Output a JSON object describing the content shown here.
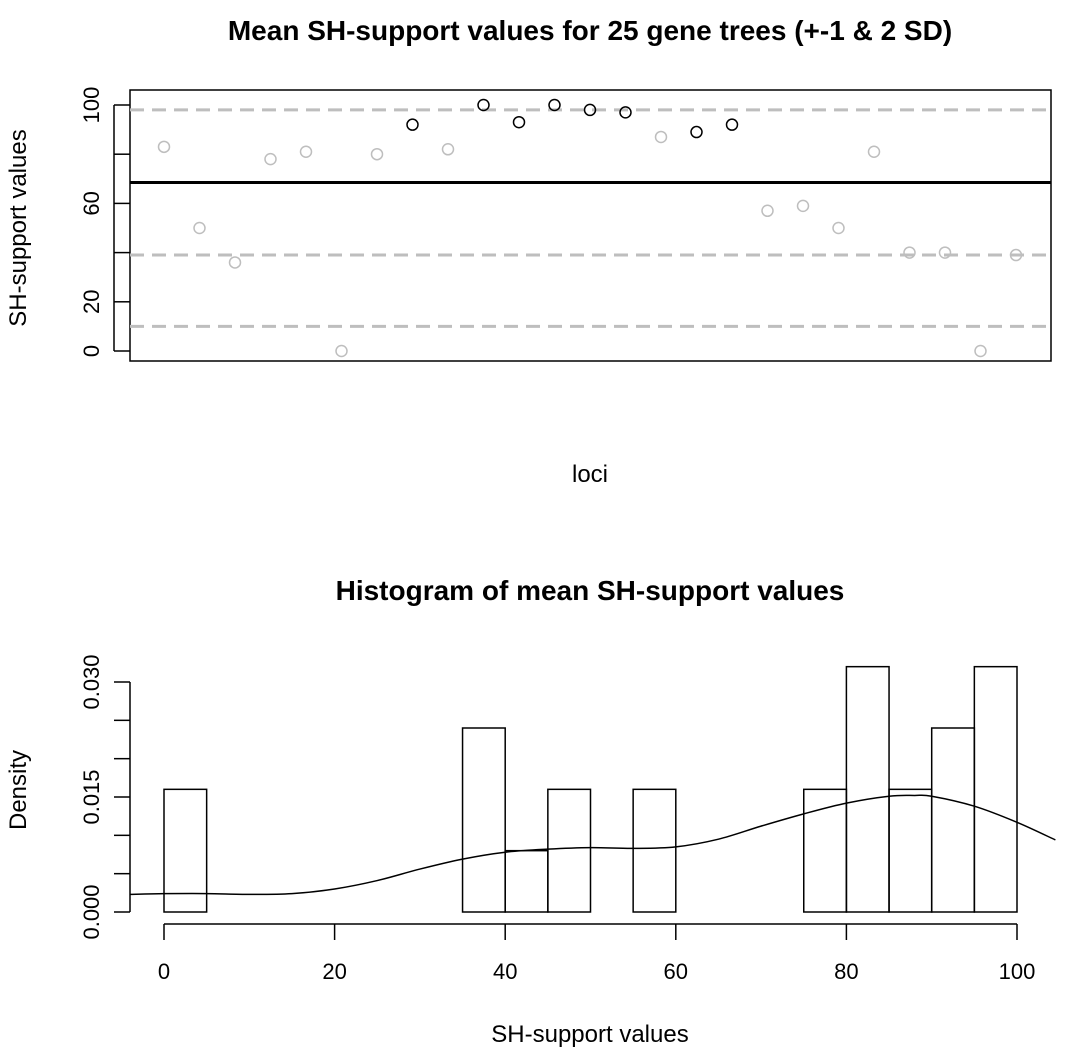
{
  "chart_data": [
    {
      "type": "scatter",
      "title": "Mean SH-support values for 25 gene trees (+-1 & 2 SD)",
      "xlabel": "loci",
      "ylabel": "SH-support values",
      "ylim": [
        0,
        100
      ],
      "yticks": [
        0,
        20,
        60,
        100
      ],
      "yticks_minor": [
        40,
        80
      ],
      "mean_line": 68.5,
      "sd_lines": [
        98,
        39,
        10
      ],
      "values": [
        83,
        50,
        36,
        78,
        81,
        0,
        80,
        92,
        82,
        100,
        93,
        100,
        98,
        97,
        87,
        89,
        92,
        57,
        59,
        50,
        81,
        40,
        40,
        0,
        39
      ],
      "point_colors": {
        "inside": "#bebebe",
        "above_mean_sd": "#000000"
      },
      "line_colors": {
        "mean": "#000000",
        "sd": "#bebebe"
      },
      "grid": false
    },
    {
      "type": "bar",
      "title": "Histogram of mean SH-support values",
      "xlabel": "SH-support values",
      "ylabel": "Density",
      "xlim": [
        0,
        100
      ],
      "xticks": [
        0,
        20,
        40,
        60,
        80,
        100
      ],
      "ylim": [
        0,
        0.03
      ],
      "yticks": [
        0.0,
        0.015,
        0.03
      ],
      "ytick_labels": [
        "0.000",
        "0.015",
        "0.030"
      ],
      "bins": [
        {
          "from": 0,
          "to": 5,
          "density": 0.016
        },
        {
          "from": 35,
          "to": 40,
          "density": 0.024
        },
        {
          "from": 40,
          "to": 45,
          "density": 0.008
        },
        {
          "from": 45,
          "to": 50,
          "density": 0.016
        },
        {
          "from": 55,
          "to": 60,
          "density": 0.016
        },
        {
          "from": 75,
          "to": 80,
          "density": 0.016
        },
        {
          "from": 80,
          "to": 85,
          "density": 0.032
        },
        {
          "from": 85,
          "to": 90,
          "density": 0.016
        },
        {
          "from": 90,
          "to": 95,
          "density": 0.024
        },
        {
          "from": 95,
          "to": 100,
          "density": 0.032
        }
      ],
      "density_curve": {
        "x": [
          -4,
          0,
          5,
          10,
          15,
          20,
          25,
          30,
          35,
          40,
          45,
          50,
          55,
          60,
          65,
          70,
          75,
          80,
          85,
          88,
          90,
          95,
          100,
          104.5
        ],
        "y": [
          0.0023,
          0.0024,
          0.0024,
          0.0023,
          0.0024,
          0.003,
          0.0041,
          0.0056,
          0.0069,
          0.0078,
          0.0082,
          0.0084,
          0.0083,
          0.0085,
          0.0095,
          0.0112,
          0.0128,
          0.0142,
          0.0151,
          0.0152,
          0.0151,
          0.0138,
          0.0117,
          0.0094
        ]
      },
      "grid": false
    }
  ]
}
